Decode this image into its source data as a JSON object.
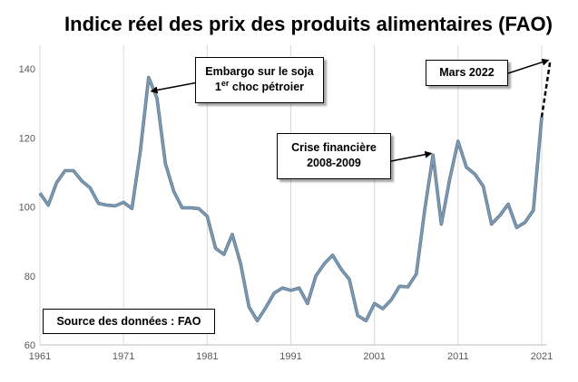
{
  "chart_data": {
    "type": "line",
    "title": "Indice réel des prix des produits alimentaires (FAO)",
    "xlabel": "",
    "ylabel": "",
    "xlim": [
      1961,
      2022
    ],
    "ylim": [
      60,
      145
    ],
    "x_ticks": [
      1961,
      1971,
      1981,
      1991,
      2001,
      2011,
      2021
    ],
    "y_ticks": [
      60,
      80,
      100,
      120,
      140
    ],
    "grid": "vertical",
    "series": [
      {
        "color": "#7f9bb3",
        "x": [
          1961,
          1962,
          1963,
          1964,
          1965,
          1966,
          1967,
          1968,
          1969,
          1970,
          1971,
          1972,
          1973,
          1974,
          1975,
          1976,
          1977,
          1978,
          1979,
          1980,
          1981,
          1982,
          1983,
          1984,
          1985,
          1986,
          1987,
          1988,
          1989,
          1990,
          1991,
          1992,
          1993,
          1994,
          1995,
          1996,
          1997,
          1998,
          1999,
          2000,
          2001,
          2002,
          2003,
          2004,
          2005,
          2006,
          2007,
          2008,
          2009,
          2010,
          2011,
          2012,
          2013,
          2014,
          2015,
          2016,
          2017,
          2018,
          2019,
          2020,
          2021
        ],
        "values": [
          104,
          100.5,
          107,
          110.5,
          110.5,
          107.5,
          105.5,
          101,
          100.5,
          100.3,
          101.3,
          99.5,
          116,
          137.5,
          131.5,
          112.5,
          104.5,
          99.7,
          99.7,
          99.5,
          97.3,
          88,
          86.2,
          92,
          83.5,
          71,
          67,
          70.8,
          75,
          76.5,
          75.8,
          76.5,
          72,
          80,
          83.5,
          86,
          82,
          79,
          68.5,
          67,
          72,
          70.5,
          73,
          77,
          76.8,
          80.5,
          99,
          115,
          95,
          108,
          119,
          111.5,
          109.5,
          106,
          95,
          97.5,
          100.8,
          94,
          95.5,
          99,
          126
        ]
      },
      {
        "color": "#000000",
        "style": "dashed",
        "x": [
          2021,
          2022
        ],
        "values": [
          126,
          142
        ]
      }
    ],
    "annotations": [
      {
        "line1": "Embargo sur le soja",
        "line2_num": "1",
        "line2_sup": "er",
        "line2_rest": " choc pétroier",
        "x": 1974.3,
        "y": 133.5
      },
      {
        "line1": "Crise financière",
        "line2": "2008-2009",
        "x": 2007.8,
        "y": 115.5
      },
      {
        "text": "Mars 2022",
        "x": 2021.8,
        "y": 142.5
      }
    ],
    "source_text": "Source des données : FAO"
  }
}
